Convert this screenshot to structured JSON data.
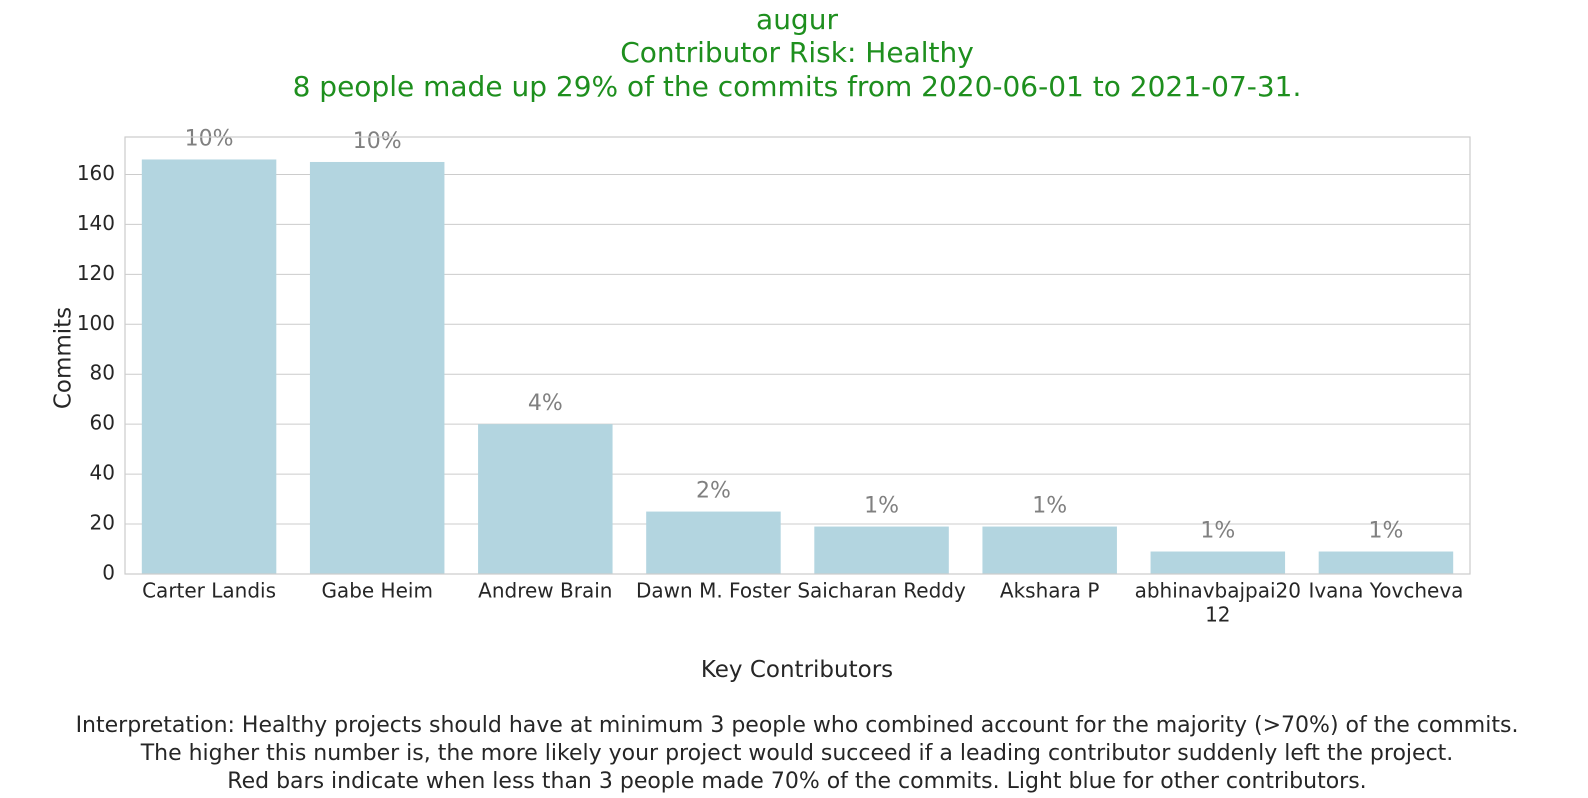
{
  "chart_data": {
    "type": "bar",
    "title_lines": [
      "augur",
      "Contributor Risk: Healthy",
      "8 people made up 29% of the commits from 2020-06-01 to 2021-07-31."
    ],
    "xlabel": "Key Contributors",
    "ylabel": "Commits",
    "ylim": [
      0,
      175
    ],
    "yticks": [
      0,
      20,
      40,
      60,
      80,
      100,
      120,
      140,
      160
    ],
    "grid": true,
    "categories": [
      "Carter Landis",
      "Gabe Heim",
      "Andrew Brain",
      "Dawn M. Foster",
      "Saicharan Reddy",
      "Akshara P",
      "abhinavbajpai2012",
      "Ivana Yovcheva"
    ],
    "category_label_lines": [
      [
        "Carter Landis"
      ],
      [
        "Gabe Heim"
      ],
      [
        "Andrew Brain"
      ],
      [
        "Dawn M. Foster"
      ],
      [
        "Saicharan Reddy"
      ],
      [
        "Akshara P"
      ],
      [
        "abhinavbajpai20",
        "12"
      ],
      [
        "Ivana Yovcheva"
      ]
    ],
    "values": [
      166,
      165,
      60,
      25,
      19,
      19,
      9,
      9
    ],
    "data_labels": [
      "10%",
      "10%",
      "4%",
      "2%",
      "1%",
      "1%",
      "1%",
      "1%"
    ],
    "bar_color": "#b3d5e0",
    "title_color": "#1e8f1e",
    "data_label_color": "#808080",
    "interpretation_lines": [
      "Interpretation: Healthy projects should have at minimum 3 people who combined account for the majority (>70%) of the commits.",
      "The higher this number is, the more likely your project would succeed if a leading contributor suddenly left the project.",
      "Red bars indicate when less than 3 people made 70% of the commits. Light blue for other contributors."
    ]
  }
}
